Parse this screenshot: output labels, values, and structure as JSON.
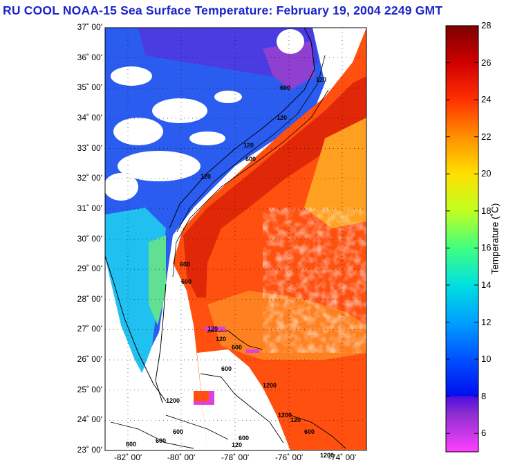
{
  "header": {
    "title": "RU COOL  NOAA-15  Sea Surface Temperature:  February 19, 2004 2249 GMT"
  },
  "map": {
    "lat_labels": [
      "37˚ 00'",
      "36˚ 00'",
      "35˚ 00'",
      "34˚ 00'",
      "33˚ 00'",
      "32˚ 00'",
      "31˚ 00'",
      "30˚ 00'",
      "29˚ 00'",
      "28˚ 00'",
      "27˚ 00'",
      "26˚ 00'",
      "25˚ 00'",
      "24˚ 00'",
      "23˚ 00'"
    ],
    "lon_labels": [
      "-82˚ 00'",
      "-80˚ 00'",
      "-78˚ 00'",
      "-76˚ 00'",
      "-74˚ 00'"
    ],
    "contour_labels": [
      "120",
      "600",
      "120",
      "600",
      "120",
      "120",
      "600",
      "600",
      "1200",
      "600",
      "600",
      "120",
      "120",
      "600",
      "1200",
      "1200",
      "120",
      "600",
      "600",
      "600",
      "600",
      "120",
      "1200"
    ],
    "colors": {
      "warm_core": "#e12a08",
      "gulf_stream": "#ff5a10",
      "shelf_cool": "#2d63f0",
      "nearshore": "#20c8f0",
      "cloud": "#ffffff",
      "land_outline": "#000000"
    }
  },
  "colorbar": {
    "title": "Temperature (˚C)",
    "ticks": [
      "28",
      "26",
      "24",
      "22",
      "20",
      "18",
      "16",
      "14",
      "12",
      "10",
      "8",
      "6"
    ],
    "range": [
      5,
      28
    ],
    "stops": [
      {
        "t": 28,
        "c": "#7a0000"
      },
      {
        "t": 26,
        "c": "#d00000"
      },
      {
        "t": 24,
        "c": "#ff3000"
      },
      {
        "t": 22,
        "c": "#ff9000"
      },
      {
        "t": 20,
        "c": "#ffe000"
      },
      {
        "t": 18,
        "c": "#c0ff20"
      },
      {
        "t": 16,
        "c": "#40ff80"
      },
      {
        "t": 14,
        "c": "#00e0e0"
      },
      {
        "t": 12,
        "c": "#00a0ff"
      },
      {
        "t": 10,
        "c": "#0050ff"
      },
      {
        "t": 8.05,
        "c": "#0010f0"
      },
      {
        "t": 7.95,
        "c": "#5010e0"
      },
      {
        "t": 7,
        "c": "#9030d0"
      },
      {
        "t": 5,
        "c": "#ff40ff"
      }
    ]
  }
}
